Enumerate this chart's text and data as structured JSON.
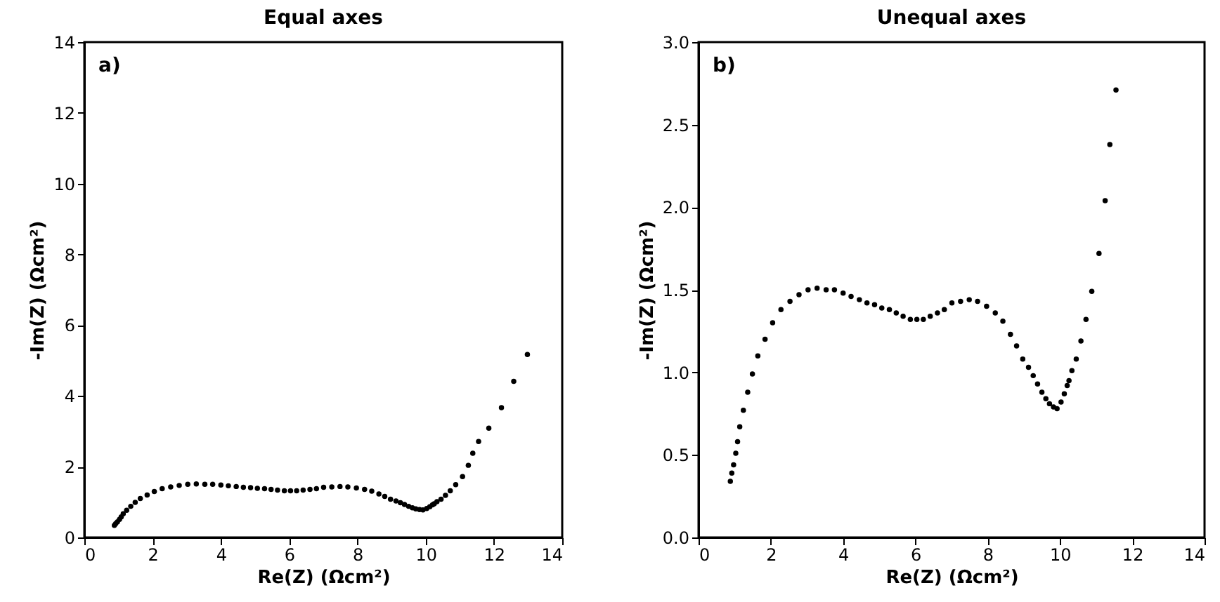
{
  "chart_data": [
    {
      "type": "scatter",
      "title": "Equal axes",
      "xlabel": "Re(Z) (Ωcm²)",
      "ylabel": "-Im(Z) (Ωcm²)",
      "annotations": [
        "a)"
      ],
      "marker": "circle",
      "grid": false,
      "xlim": [
        0,
        14
      ],
      "xticks": [
        0,
        2,
        4,
        6,
        8,
        10,
        12,
        14
      ],
      "ylim": [
        0,
        14
      ],
      "yticks": [
        0,
        2,
        4,
        6,
        8,
        10,
        12,
        14
      ],
      "series": [
        {
          "color": "#000000",
          "x": [
            0.88,
            0.92,
            0.97,
            1.03,
            1.08,
            1.14,
            1.24,
            1.36,
            1.49,
            1.64,
            1.84,
            2.05,
            2.28,
            2.53,
            2.78,
            3.03,
            3.28,
            3.53,
            3.76,
            4.0,
            4.22,
            4.45,
            4.66,
            4.87,
            5.07,
            5.28,
            5.47,
            5.66,
            5.86,
            6.04,
            6.22,
            6.41,
            6.61,
            6.8,
            7.01,
            7.25,
            7.49,
            7.72,
            7.97,
            8.21,
            8.42,
            8.63,
            8.8,
            8.97,
            9.13,
            9.26,
            9.38,
            9.5,
            9.61,
            9.71,
            9.82,
            9.92,
            10.03,
            10.12,
            10.2,
            10.25,
            10.33,
            10.45,
            10.58,
            10.72,
            10.88,
            11.08,
            11.25,
            11.38,
            11.55,
            11.85,
            12.22,
            12.58,
            12.98
          ],
          "values": [
            0.34,
            0.39,
            0.44,
            0.51,
            0.58,
            0.67,
            0.77,
            0.88,
            0.99,
            1.1,
            1.2,
            1.3,
            1.38,
            1.43,
            1.47,
            1.5,
            1.51,
            1.5,
            1.5,
            1.48,
            1.46,
            1.44,
            1.42,
            1.41,
            1.39,
            1.38,
            1.36,
            1.34,
            1.32,
            1.32,
            1.32,
            1.34,
            1.36,
            1.38,
            1.42,
            1.43,
            1.44,
            1.43,
            1.4,
            1.36,
            1.31,
            1.23,
            1.16,
            1.08,
            1.03,
            0.98,
            0.93,
            0.88,
            0.84,
            0.81,
            0.79,
            0.78,
            0.82,
            0.87,
            0.92,
            0.95,
            1.01,
            1.08,
            1.19,
            1.32,
            1.49,
            1.72,
            2.04,
            2.38,
            2.71,
            3.09,
            3.67,
            4.41,
            5.17
          ]
        }
      ]
    },
    {
      "type": "scatter",
      "title": "Unequal axes",
      "xlabel": "Re(Z) (Ωcm²)",
      "ylabel": "-Im(Z) (Ωcm²)",
      "annotations": [
        "b)"
      ],
      "marker": "circle",
      "grid": false,
      "xlim": [
        0,
        14
      ],
      "xticks": [
        0,
        2,
        4,
        6,
        8,
        10,
        12,
        14
      ],
      "ylim": [
        0,
        3
      ],
      "yticks": [
        {
          "value": 0,
          "label": "0.0"
        },
        {
          "value": 0.5,
          "label": "0.5"
        },
        {
          "value": 1,
          "label": "1.0"
        },
        {
          "value": 1.5,
          "label": "1.5"
        },
        {
          "value": 2,
          "label": "2.0"
        },
        {
          "value": 2.5,
          "label": "2.5"
        },
        {
          "value": 3,
          "label": "3.0"
        }
      ],
      "series": [
        {
          "color": "#000000",
          "x": [
            0.88,
            0.92,
            0.97,
            1.03,
            1.08,
            1.14,
            1.24,
            1.36,
            1.49,
            1.64,
            1.84,
            2.05,
            2.28,
            2.53,
            2.78,
            3.03,
            3.28,
            3.53,
            3.76,
            4.0,
            4.22,
            4.45,
            4.66,
            4.87,
            5.07,
            5.28,
            5.47,
            5.66,
            5.86,
            6.04,
            6.22,
            6.41,
            6.61,
            6.8,
            7.01,
            7.25,
            7.49,
            7.72,
            7.97,
            8.21,
            8.42,
            8.63,
            8.8,
            8.97,
            9.13,
            9.26,
            9.38,
            9.5,
            9.61,
            9.71,
            9.82,
            9.92,
            10.03,
            10.12,
            10.2,
            10.25,
            10.33,
            10.45,
            10.58,
            10.72,
            10.88,
            11.08,
            11.25,
            11.38,
            11.55
          ],
          "values": [
            0.34,
            0.39,
            0.44,
            0.51,
            0.58,
            0.67,
            0.77,
            0.88,
            0.99,
            1.1,
            1.2,
            1.3,
            1.38,
            1.43,
            1.47,
            1.5,
            1.51,
            1.5,
            1.5,
            1.48,
            1.46,
            1.44,
            1.42,
            1.41,
            1.39,
            1.38,
            1.36,
            1.34,
            1.32,
            1.32,
            1.32,
            1.34,
            1.36,
            1.38,
            1.42,
            1.43,
            1.44,
            1.43,
            1.4,
            1.36,
            1.31,
            1.23,
            1.16,
            1.08,
            1.03,
            0.98,
            0.93,
            0.88,
            0.84,
            0.81,
            0.79,
            0.78,
            0.82,
            0.87,
            0.92,
            0.95,
            1.01,
            1.08,
            1.19,
            1.32,
            1.49,
            1.72,
            2.04,
            2.38,
            2.71
          ]
        }
      ]
    }
  ]
}
